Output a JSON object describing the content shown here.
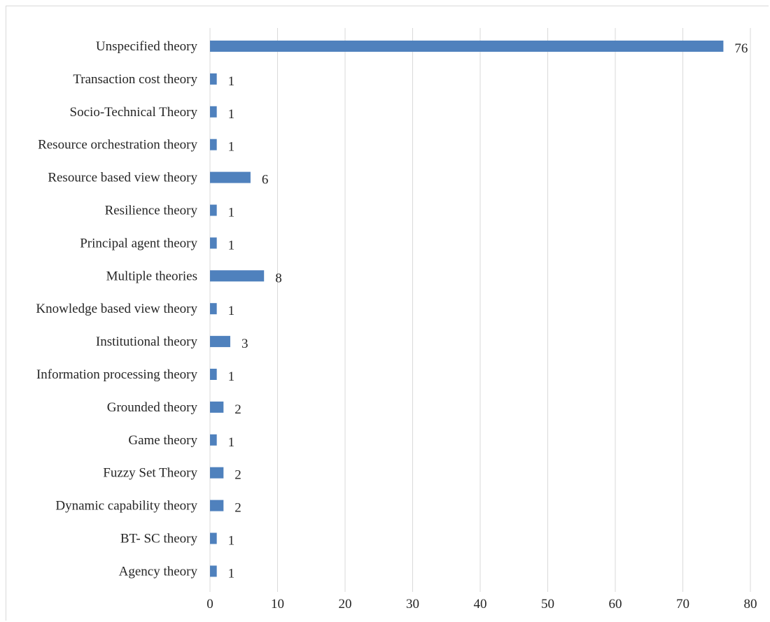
{
  "chart_data": {
    "type": "bar",
    "orientation": "horizontal",
    "categories": [
      "Unspecified theory",
      "Transaction cost theory",
      "Socio-Technical Theory",
      "Resource orchestration theory",
      "Resource based view theory",
      "Resilience theory",
      "Principal agent theory",
      "Multiple theories",
      "Knowledge based view theory",
      "Institutional theory",
      "Information processing theory",
      "Grounded theory",
      "Game theory",
      "Fuzzy Set Theory",
      "Dynamic capability theory",
      "BT- SC theory",
      "Agency theory"
    ],
    "values": [
      76,
      1,
      1,
      1,
      6,
      1,
      1,
      8,
      1,
      3,
      1,
      2,
      1,
      2,
      2,
      1,
      1
    ],
    "xlim": [
      0,
      80
    ],
    "xticks": [
      0,
      10,
      20,
      30,
      40,
      50,
      60,
      70,
      80
    ],
    "grid": "vertical",
    "data_labels": true,
    "bar_color": "#4f81bd",
    "grid_color": "#d9d9d9",
    "title": "",
    "xlabel": "",
    "ylabel": ""
  }
}
